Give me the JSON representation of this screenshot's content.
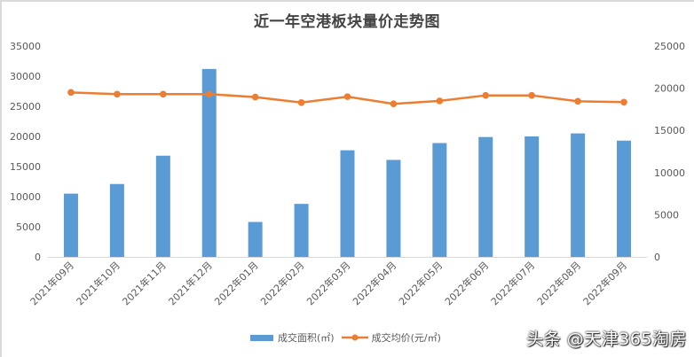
{
  "title": "近一年空港板块量价走势图",
  "chart_data": {
    "type": "bar+line",
    "title": "近一年空港板块量价走势图",
    "categories": [
      "2021年09月",
      "2021年10月",
      "2021年11月",
      "2021年12月",
      "2022年01月",
      "2022年02月",
      "2022年03月",
      "2022年04月",
      "2022年05月",
      "2022年06月",
      "2022年07月",
      "2022年08月",
      "2022年09月"
    ],
    "series": [
      {
        "name": "成交面积(㎡)",
        "type": "bar",
        "axis": "left",
        "color": "#5b9bd5",
        "values": [
          10500,
          12100,
          16800,
          31200,
          5800,
          8800,
          17700,
          16100,
          18900,
          19900,
          20000,
          20500,
          19300
        ]
      },
      {
        "name": "成交均价(元/㎡)",
        "type": "line",
        "axis": "right",
        "color": "#ed7d31",
        "values": [
          19500,
          19300,
          19300,
          19300,
          18950,
          18300,
          19000,
          18150,
          18500,
          19150,
          19150,
          18450,
          18350
        ]
      }
    ],
    "left_axis": {
      "ylim": [
        0,
        35000
      ],
      "ticks": [
        "0",
        "5000",
        "10000",
        "15000",
        "20000",
        "25000",
        "30000",
        "35000"
      ]
    },
    "right_axis": {
      "ylim": [
        0,
        25000
      ],
      "ticks": [
        "0",
        "5000",
        "10000",
        "15000",
        "20000",
        "25000"
      ]
    },
    "xlabel": "",
    "ylabel": "",
    "grid": false,
    "legend_position": "bottom"
  },
  "legend": {
    "bar_label": "成交面积(㎡)",
    "line_label": "成交均价(元/㎡)"
  },
  "watermark": "头条 @天津365淘房"
}
